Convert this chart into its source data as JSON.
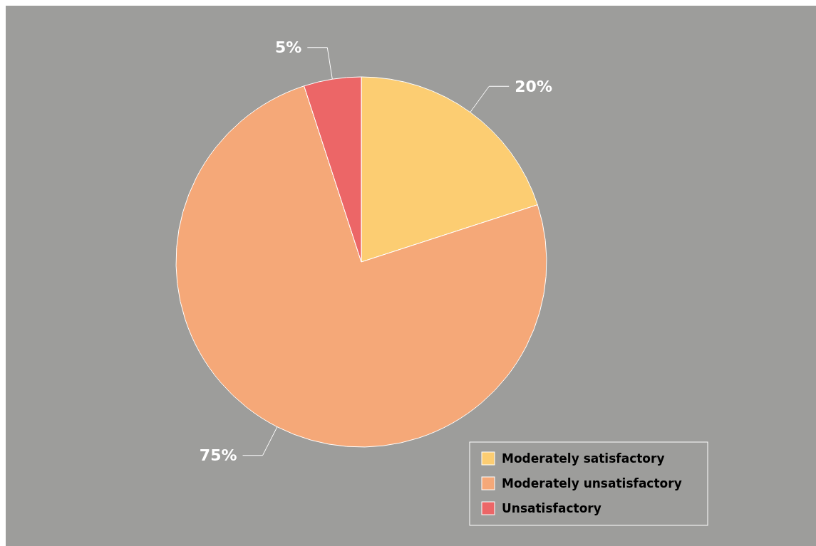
{
  "chart_data": {
    "type": "pie",
    "categories": [
      "Moderately satisfactory",
      "Moderately unsatisfactory",
      "Unsatisfactory"
    ],
    "values": [
      20,
      75,
      5
    ],
    "colors": [
      "#fccd72",
      "#f5a878",
      "#ec6667"
    ],
    "value_labels": [
      "20%",
      "75%",
      "5%"
    ],
    "legend": "bottom right"
  }
}
